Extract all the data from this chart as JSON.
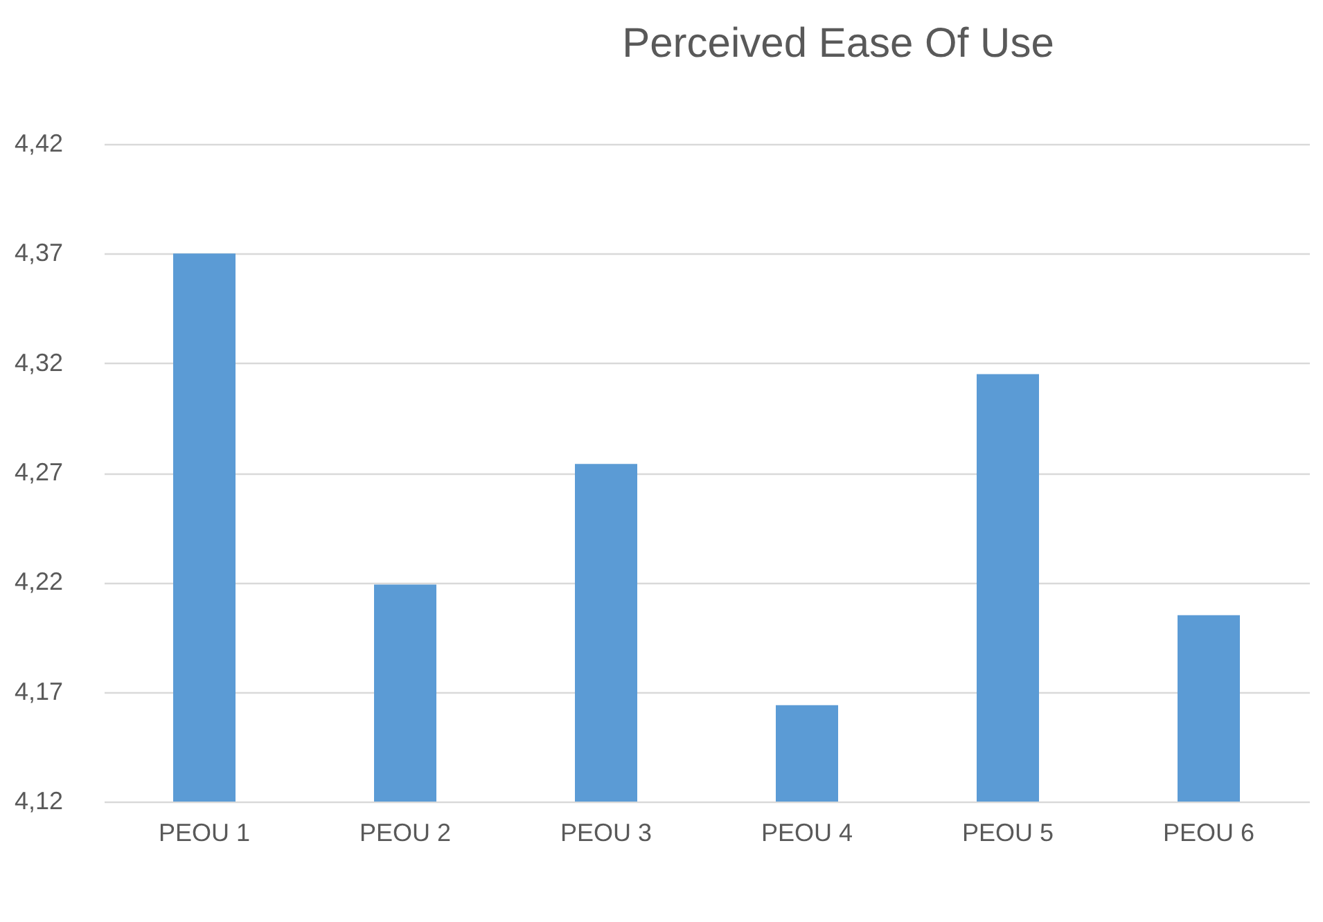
{
  "chart_data": {
    "type": "bar",
    "title": "Perceived Ease Of Use",
    "categories": [
      "PEOU 1",
      "PEOU  2",
      "PEOU 3",
      "PEOU 4",
      "PEOU 5",
      "PEOU 6"
    ],
    "values": [
      4.37,
      4.219,
      4.274,
      4.164,
      4.315,
      4.205
    ],
    "color": "#5b9bd5",
    "ylim": [
      4.12,
      4.42
    ],
    "yticks": [
      {
        "value": 4.12,
        "label": "4,12"
      },
      {
        "value": 4.17,
        "label": "4,17"
      },
      {
        "value": 4.22,
        "label": "4,22"
      },
      {
        "value": 4.27,
        "label": "4,27"
      },
      {
        "value": 4.32,
        "label": "4,32"
      },
      {
        "value": 4.37,
        "label": "4,37"
      },
      {
        "value": 4.42,
        "label": "4,42"
      }
    ],
    "grid": "y"
  }
}
